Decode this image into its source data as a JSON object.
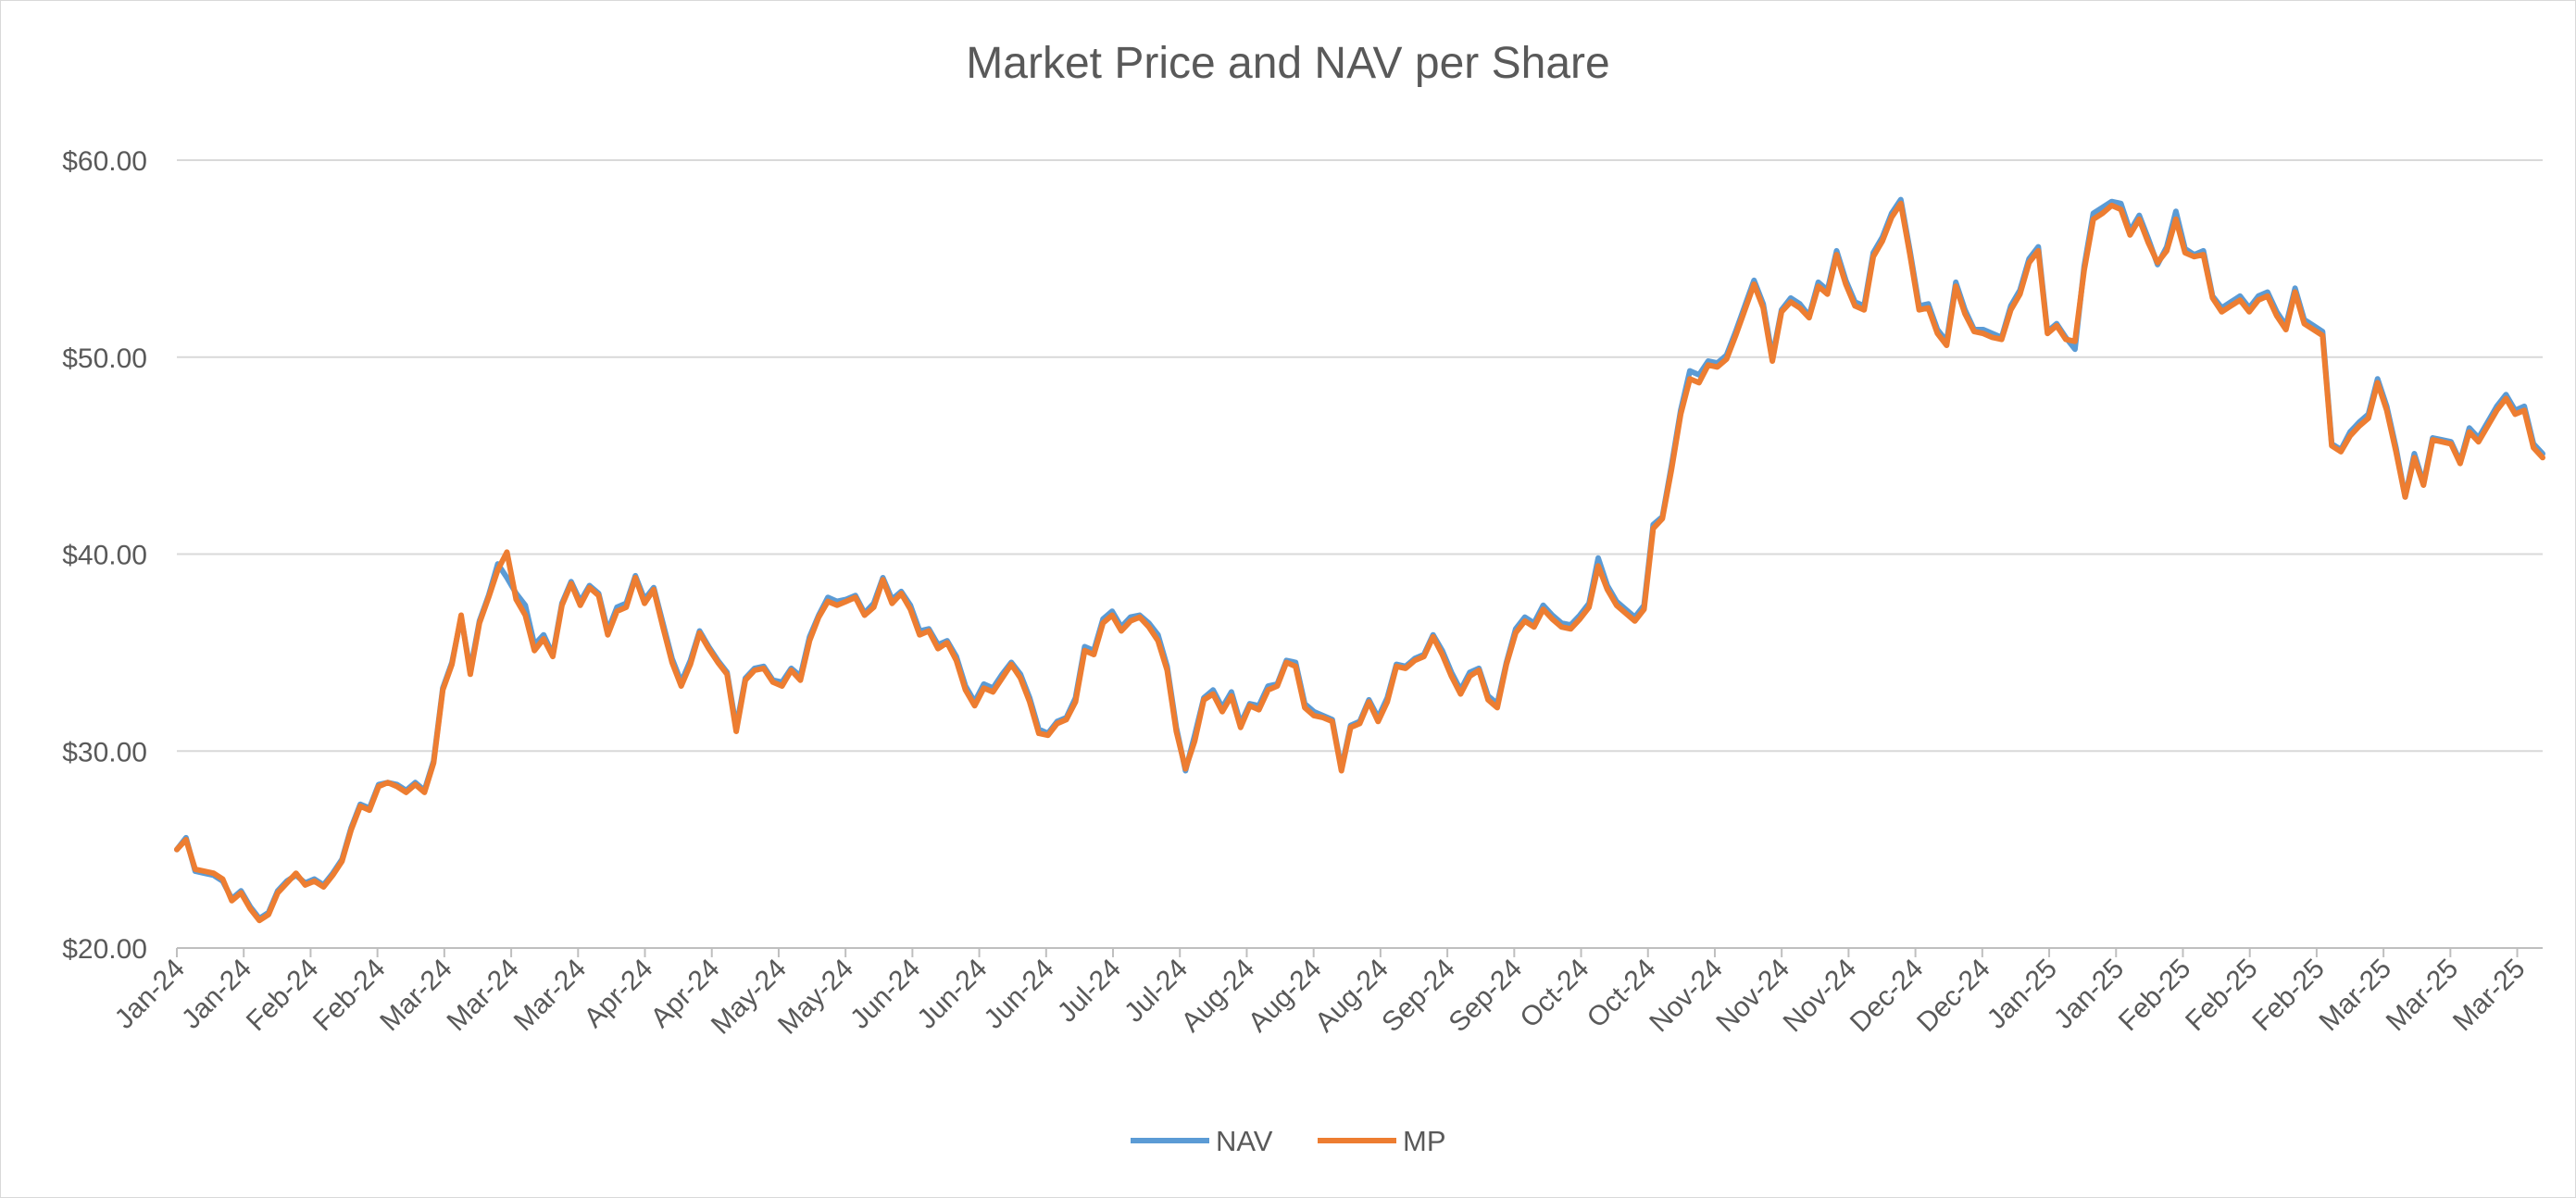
{
  "chart_data": {
    "type": "line",
    "title": "Market Price and NAV per Share",
    "xlabel": "",
    "ylabel": "",
    "ylim": [
      20,
      60
    ],
    "y_ticks": [
      20,
      30,
      40,
      50,
      60
    ],
    "y_tick_labels": [
      "$20.00",
      "$30.00",
      "$40.00",
      "$50.00",
      "$60.00"
    ],
    "x_tick_labels": [
      "Jan-24",
      "Jan-24",
      "Feb-24",
      "Feb-24",
      "Mar-24",
      "Mar-24",
      "Mar-24",
      "Apr-24",
      "Apr-24",
      "May-24",
      "May-24",
      "Jun-24",
      "Jun-24",
      "Jun-24",
      "Jul-24",
      "Jul-24",
      "Aug-24",
      "Aug-24",
      "Aug-24",
      "Sep-24",
      "Sep-24",
      "Oct-24",
      "Oct-24",
      "Nov-24",
      "Nov-24",
      "Nov-24",
      "Dec-24",
      "Dec-24",
      "Jan-25",
      "Jan-25",
      "Feb-25",
      "Feb-25",
      "Feb-25",
      "Mar-25",
      "Mar-25",
      "Mar-25"
    ],
    "legend_position": "bottom",
    "grid": "horizontal",
    "colors": {
      "NAV": "#5b9bd5",
      "MP": "#ed7d31"
    },
    "series": [
      {
        "name": "NAV",
        "values": [
          25.0,
          25.6,
          23.9,
          23.8,
          23.7,
          23.4,
          22.5,
          22.9,
          22.1,
          21.5,
          21.8,
          22.9,
          23.4,
          23.7,
          23.3,
          23.5,
          23.2,
          23.8,
          24.5,
          26.1,
          27.3,
          27.1,
          28.3,
          28.4,
          28.3,
          28.0,
          28.4,
          28.0,
          29.5,
          33.2,
          34.5,
          36.8,
          34.1,
          36.6,
          37.9,
          39.5,
          38.8,
          38.0,
          37.4,
          35.4,
          35.9,
          34.9,
          37.5,
          38.6,
          37.6,
          38.4,
          38.0,
          36.1,
          37.3,
          37.5,
          38.9,
          37.7,
          38.3,
          36.5,
          34.7,
          33.5,
          34.6,
          36.1,
          35.3,
          34.6,
          34.0,
          31.2,
          33.7,
          34.2,
          34.3,
          33.6,
          33.5,
          34.2,
          33.8,
          35.8,
          36.9,
          37.8,
          37.6,
          37.7,
          37.9,
          37.0,
          37.5,
          38.8,
          37.7,
          38.1,
          37.4,
          36.1,
          36.2,
          35.4,
          35.6,
          34.8,
          33.3,
          32.5,
          33.4,
          33.2,
          33.9,
          34.5,
          33.9,
          32.7,
          31.1,
          30.9,
          31.5,
          31.7,
          32.7,
          35.3,
          35.1,
          36.7,
          37.1,
          36.3,
          36.8,
          36.9,
          36.5,
          35.9,
          34.3,
          31.2,
          29.0,
          30.8,
          32.7,
          33.1,
          32.2,
          33.0,
          31.4,
          32.4,
          32.3,
          33.3,
          33.4,
          34.6,
          34.5,
          32.4,
          32.0,
          31.8,
          31.6,
          29.1,
          31.3,
          31.5,
          32.6,
          31.7,
          32.7,
          34.4,
          34.3,
          34.7,
          34.9,
          35.9,
          35.1,
          34.0,
          33.1,
          34.0,
          34.2,
          32.8,
          32.4,
          34.5,
          36.2,
          36.8,
          36.5,
          37.4,
          36.9,
          36.5,
          36.4,
          36.9,
          37.5,
          39.8,
          38.4,
          37.6,
          37.2,
          36.8,
          37.4,
          41.5,
          41.9,
          44.5,
          47.3,
          49.3,
          49.1,
          49.8,
          49.7,
          50.1,
          51.3,
          52.6,
          53.9,
          52.7,
          50.0,
          52.4,
          53.0,
          52.7,
          52.1,
          53.8,
          53.4,
          55.4,
          53.9,
          52.8,
          52.6,
          55.3,
          56.1,
          57.3,
          58.0,
          55.4,
          52.6,
          52.7,
          51.4,
          50.8,
          53.8,
          52.4,
          51.4,
          51.4,
          51.2,
          51.0,
          52.6,
          53.4,
          55.0,
          55.6,
          51.3,
          51.7,
          51.0,
          50.4,
          54.6,
          57.3,
          57.6,
          57.9,
          57.8,
          56.4,
          57.2,
          56.0,
          54.7,
          55.6,
          57.4,
          55.5,
          55.2,
          55.4,
          53.1,
          52.5,
          52.8,
          53.1,
          52.5,
          53.1,
          53.3,
          52.3,
          51.6,
          53.5,
          51.9,
          51.6,
          51.3,
          45.6,
          45.3,
          46.2,
          46.7,
          47.1,
          48.9,
          47.5,
          45.4,
          42.9,
          45.1,
          43.6,
          45.9,
          45.8,
          45.7,
          44.7,
          46.4,
          45.9,
          46.7,
          47.5,
          48.1,
          47.3,
          47.5,
          45.6,
          45.1
        ]
      },
      {
        "name": "MP",
        "values": [
          25.0,
          25.5,
          24.0,
          23.9,
          23.8,
          23.5,
          22.4,
          22.8,
          22.0,
          21.4,
          21.7,
          22.8,
          23.3,
          23.8,
          23.2,
          23.4,
          23.1,
          23.7,
          24.4,
          26.0,
          27.2,
          27.0,
          28.2,
          28.4,
          28.2,
          27.9,
          28.3,
          27.9,
          29.4,
          33.1,
          34.4,
          36.9,
          33.9,
          36.5,
          37.8,
          39.2,
          40.1,
          37.7,
          36.9,
          35.1,
          35.7,
          34.8,
          37.4,
          38.5,
          37.4,
          38.3,
          37.9,
          35.9,
          37.1,
          37.3,
          38.8,
          37.5,
          38.2,
          36.3,
          34.5,
          33.3,
          34.4,
          36.0,
          35.2,
          34.5,
          33.9,
          31.0,
          33.6,
          34.1,
          34.2,
          33.5,
          33.3,
          34.1,
          33.6,
          35.6,
          36.8,
          37.6,
          37.4,
          37.6,
          37.8,
          36.9,
          37.3,
          38.7,
          37.5,
          38.0,
          37.2,
          35.9,
          36.1,
          35.2,
          35.5,
          34.6,
          33.1,
          32.3,
          33.2,
          33.0,
          33.7,
          34.4,
          33.7,
          32.5,
          30.9,
          30.8,
          31.4,
          31.6,
          32.5,
          35.1,
          34.9,
          36.5,
          36.9,
          36.1,
          36.6,
          36.8,
          36.3,
          35.6,
          34.1,
          31.0,
          29.1,
          30.5,
          32.6,
          32.9,
          32.0,
          32.8,
          31.2,
          32.3,
          32.1,
          33.1,
          33.3,
          34.5,
          34.3,
          32.2,
          31.8,
          31.7,
          31.5,
          29.0,
          31.2,
          31.4,
          32.5,
          31.5,
          32.5,
          34.3,
          34.2,
          34.6,
          34.8,
          35.8,
          34.9,
          33.8,
          32.9,
          33.8,
          34.1,
          32.6,
          32.2,
          34.4,
          36.0,
          36.6,
          36.3,
          37.2,
          36.7,
          36.3,
          36.2,
          36.7,
          37.3,
          39.4,
          38.2,
          37.4,
          37.0,
          36.6,
          37.2,
          41.3,
          41.8,
          44.3,
          47.1,
          48.9,
          48.7,
          49.6,
          49.5,
          49.9,
          51.1,
          52.4,
          53.7,
          52.5,
          49.8,
          52.3,
          52.8,
          52.5,
          52.0,
          53.6,
          53.2,
          55.2,
          53.7,
          52.6,
          52.4,
          55.1,
          55.9,
          57.1,
          57.8,
          55.2,
          52.4,
          52.5,
          51.2,
          50.6,
          53.6,
          52.2,
          51.3,
          51.2,
          51.0,
          50.9,
          52.4,
          53.2,
          54.8,
          55.4,
          51.2,
          51.6,
          50.9,
          50.8,
          54.4,
          57.0,
          57.3,
          57.7,
          57.5,
          56.2,
          57.0,
          55.8,
          54.8,
          55.4,
          57.0,
          55.3,
          55.1,
          55.2,
          53.0,
          52.3,
          52.6,
          52.9,
          52.3,
          52.9,
          53.1,
          52.1,
          51.4,
          53.3,
          51.7,
          51.4,
          51.1,
          45.5,
          45.2,
          46.0,
          46.5,
          46.9,
          48.7,
          47.3,
          45.2,
          42.9,
          44.9,
          43.5,
          45.8,
          45.7,
          45.6,
          44.6,
          46.2,
          45.7,
          46.5,
          47.3,
          47.9,
          47.1,
          47.3,
          45.4,
          44.9
        ]
      }
    ]
  }
}
